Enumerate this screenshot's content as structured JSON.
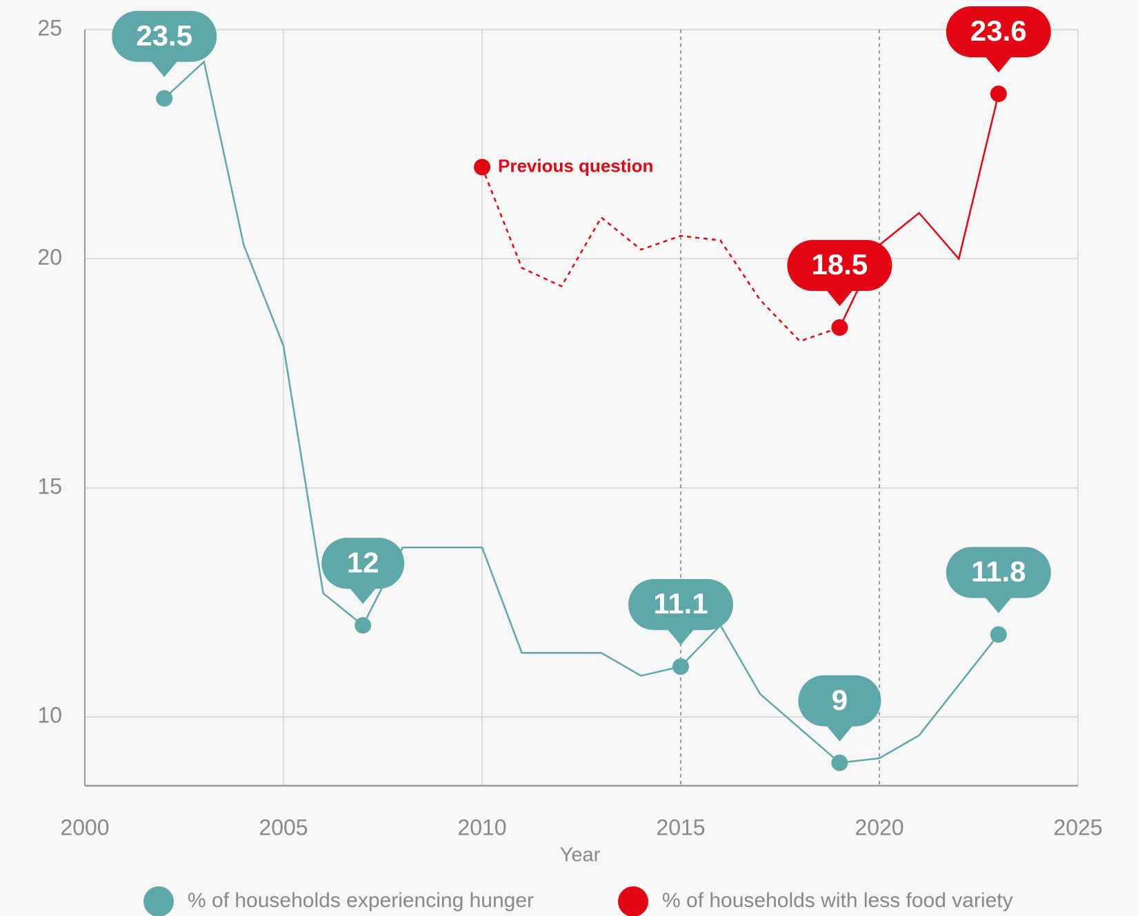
{
  "chart_data": {
    "type": "line",
    "x_label": "Year",
    "xlim": [
      2000,
      2025
    ],
    "xticks": [
      2000,
      2005,
      2010,
      2015,
      2020,
      2025
    ],
    "ylim": [
      8.5,
      25
    ],
    "yticks": [
      10,
      15,
      20,
      25
    ],
    "grid": true,
    "dashed_xlines": [
      2015,
      2020
    ],
    "legend": "bottom",
    "series": [
      {
        "name": "% of households experiencing hunger",
        "color": "#5fa8aa",
        "x": [
          2002,
          2003,
          2004,
          2005,
          2006,
          2007,
          2008,
          2009,
          2010,
          2011,
          2012,
          2013,
          2014,
          2015,
          2016,
          2017,
          2018,
          2019,
          2020,
          2021,
          2022,
          2023
        ],
        "values": [
          23.5,
          24.3,
          20.3,
          18.1,
          12.7,
          12,
          13.7,
          13.7,
          13.7,
          11.4,
          11.4,
          11.4,
          10.9,
          11.1,
          12.0,
          10.5,
          9.75,
          9,
          9.1,
          9.6,
          10.7,
          11.8
        ],
        "labeled_x": [
          2002,
          2007,
          2015,
          2019,
          2023
        ]
      },
      {
        "name": "% of households with less food variety",
        "color": "#e30613",
        "x": [
          2010,
          2011,
          2012,
          2013,
          2014,
          2015,
          2016,
          2017,
          2018,
          2019,
          2020,
          2021,
          2022,
          2023
        ],
        "values": [
          22.0,
          19.8,
          19.4,
          20.9,
          20.2,
          20.5,
          20.4,
          19.1,
          18.2,
          18.5,
          20.3,
          21.0,
          20.0,
          23.6
        ],
        "labeled_x": [
          2019,
          2023
        ],
        "dash_until_x": 2019,
        "annotation": "Previous question"
      }
    ]
  }
}
